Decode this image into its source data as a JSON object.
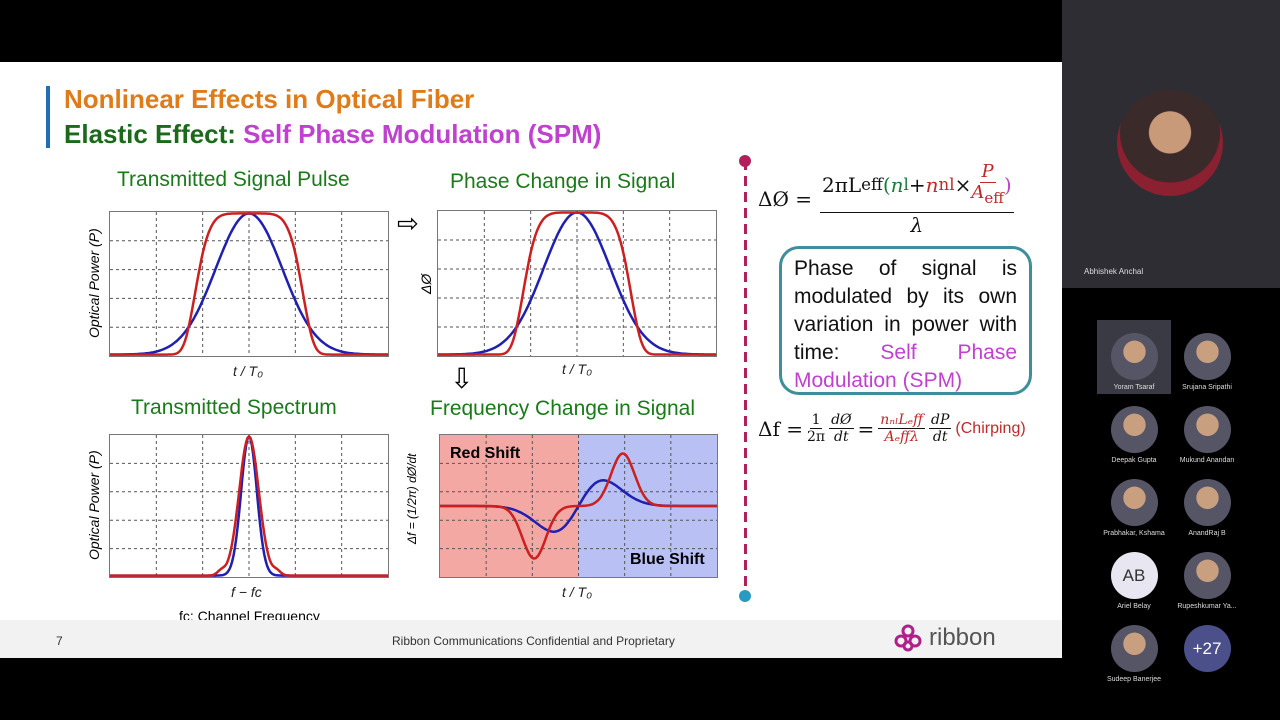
{
  "slide": {
    "title1": "Nonlinear Effects in Optical Fiber",
    "title2_a": "Elastic Effect: ",
    "title2_b": "Self Phase Modulation (SPM)",
    "plots": [
      {
        "title": "Transmitted Signal Pulse",
        "ylabel": "Optical Power (P)",
        "xlabel": "t / T₀"
      },
      {
        "title": "Phase Change in Signal",
        "ylabel": "ΔØ",
        "xlabel": "t / T₀"
      },
      {
        "title": "Transmitted Spectrum",
        "ylabel": "Optical Power (P)",
        "xlabel": "f − fᴄ",
        "note": "fᴄ: Channel Frequency"
      },
      {
        "title": "Frequency Change in Signal",
        "ylabel": "Δf = (1/2π) dØ/dt",
        "xlabel": "t / T₀",
        "red_label": "Red Shift",
        "blue_label": "Blue Shift"
      }
    ],
    "arrow_right": "⇨",
    "arrow_down": "⇩",
    "eq1": {
      "lhs": "ΔØ =",
      "num_a": "2πL",
      "num_eff": "eff",
      "num_open": "(",
      "n_l": "n",
      "l_sub": "l",
      "plus": " + ",
      "n_nl": "n",
      "nl_sub": "nl",
      "times": " × ",
      "P": "P",
      "A": "A",
      "A_sub": "eff",
      "close": ")",
      "den": "λ"
    },
    "box_text": "Phase of signal is modulated by its own variation in power with time: ",
    "box_highlight": "Self Phase Modulation (SPM)",
    "eq2": {
      "lhs": "Δf =",
      "f1n": "1",
      "f1d": "2π",
      "f2n": "dØ",
      "f2d": "dt",
      "eq": "=",
      "f3n": "nₙₗLₑff",
      "f3d": "Aₑffλ",
      "f4n": "dP",
      "f4d": "dt",
      "chirp": "(Chirping)"
    },
    "footer": {
      "page": "7",
      "confidential": "Ribbon Communications Confidential and Proprietary",
      "logo": "ribbon"
    },
    "colors": {
      "red": "#cc2020",
      "blue": "#2020b0",
      "title_orange": "#e07b1a",
      "title_green": "#1a6a1a",
      "spm": "#c040d0"
    }
  },
  "meeting": {
    "speaker": "Abhishek Anchal",
    "participants": [
      {
        "name": "Yoram Tsaraf",
        "active": true
      },
      {
        "name": "Srujana Sripathi"
      },
      {
        "name": "Deepak Gupta"
      },
      {
        "name": "Mukund Anandan"
      },
      {
        "name": "Prabhakar, Kshama"
      },
      {
        "name": "AnandRaj B"
      },
      {
        "name": "Ariel Belay",
        "initials": "AB"
      },
      {
        "name": "Rupeshkumar Ya..."
      },
      {
        "name": "Sudeep Banerjee"
      },
      {
        "name": "",
        "overflow": "+27"
      }
    ]
  }
}
